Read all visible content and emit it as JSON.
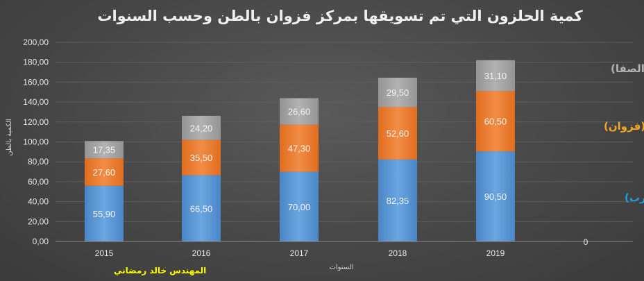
{
  "chart_data": {
    "type": "bar",
    "stacked": true,
    "title": "كمية الحلزون التي تم تسويقها بمركز فزوان بالطن وحسب السنوات",
    "xlabel": "السنوات",
    "ylabel": "الكمية بالطن",
    "categories": [
      "2015",
      "2016",
      "2017",
      "2018",
      "2019"
    ],
    "ylim": [
      0,
      200
    ],
    "yticks": [
      "0,00",
      "20,00",
      "40,00",
      "60,00",
      "80,00",
      "100,00",
      "120,00",
      "140,00",
      "160,00",
      "180,00",
      "200,00"
    ],
    "grid": true,
    "legend_placement": "right",
    "series": [
      {
        "name": "المراكشية (الغرب)",
        "values": [
          55.9,
          66.5,
          70.0,
          82.35,
          90.5
        ],
        "labels": [
          "55,90",
          "66,50",
          "70,00",
          "82,35",
          "90,50"
        ],
        "color": "#5b9bd5",
        "legend_color": "#1ea0e6"
      },
      {
        "name": "البقري (فزوان)",
        "values": [
          27.6,
          35.5,
          47.3,
          52.6,
          60.5
        ],
        "labels": [
          "27,60",
          "35,50",
          "47,30",
          "52,60",
          "60,50"
        ],
        "color": "#ed7d31",
        "legend_color": "#f5a623"
      },
      {
        "name": "العجل (عين الصفا)",
        "values": [
          17.35,
          24.2,
          26.6,
          29.5,
          31.1
        ],
        "labels": [
          "17,35",
          "24,20",
          "26,60",
          "29,50",
          "31,10"
        ],
        "color": "#a5a5a5",
        "legend_color": "#b4b4b4"
      }
    ],
    "annotations": [
      "0"
    ]
  },
  "author": "المهندس خالد رمضاني"
}
